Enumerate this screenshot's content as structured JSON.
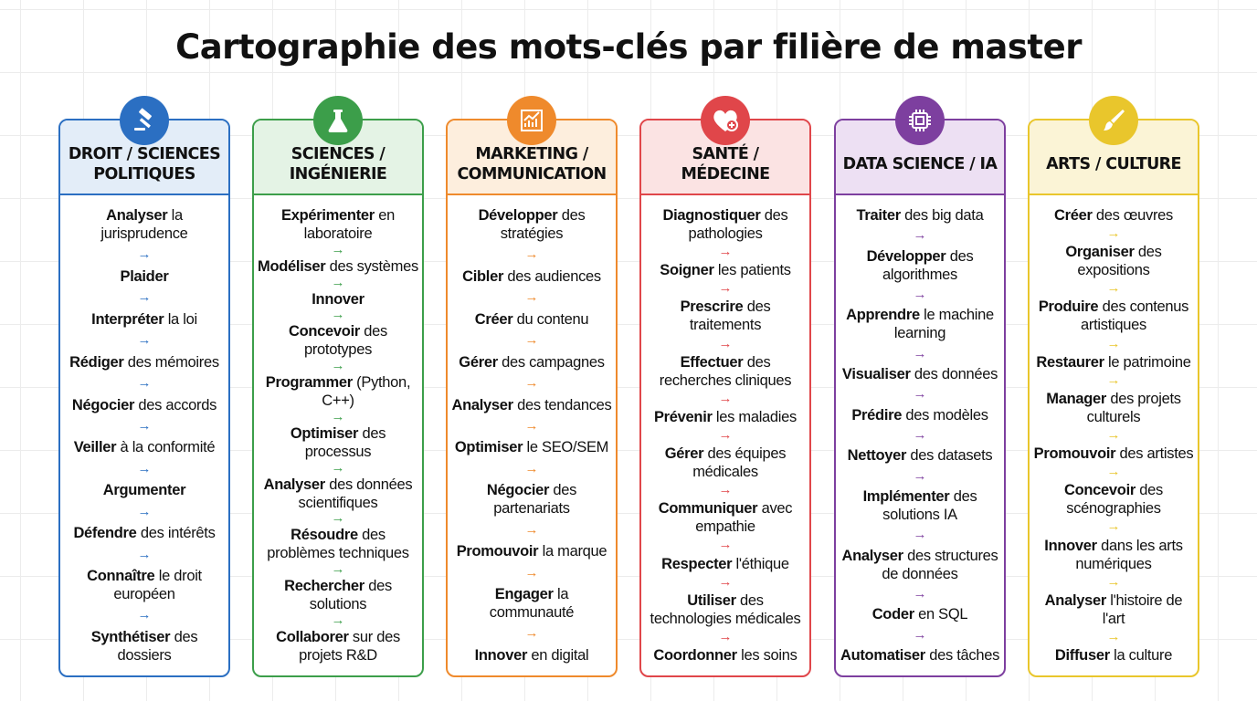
{
  "title": "Cartographie des mots-clés par filière de master",
  "columns": [
    {
      "title": "DROIT / SCIENCES POLITIQUES",
      "icon": "gavel-icon",
      "color": "#2b6fc2",
      "tint": "#e3edf8",
      "items": [
        {
          "b": "Analyser",
          "r": " la jurisprudence"
        },
        {
          "b": "Plaider",
          "r": ""
        },
        {
          "b": "Interpréter",
          "r": " la loi"
        },
        {
          "b": "Rédiger",
          "r": " des mémoires"
        },
        {
          "b": "Négocier",
          "r": " des accords"
        },
        {
          "b": "Veiller",
          "r": " à la conformité"
        },
        {
          "b": "Argumenter",
          "r": ""
        },
        {
          "b": "Défendre",
          "r": " des intérêts"
        },
        {
          "b": "Connaître",
          "r": " le droit européen"
        },
        {
          "b": "Synthétiser",
          "r": " des dossiers"
        }
      ]
    },
    {
      "title": "SCIENCES / INGÉNIERIE",
      "icon": "flask-icon",
      "color": "#3c9e4a",
      "tint": "#e4f3e5",
      "items": [
        {
          "b": "Expérimenter",
          "r": " en laboratoire"
        },
        {
          "b": "Modéliser",
          "r": " des systèmes"
        },
        {
          "b": "Innover",
          "r": ""
        },
        {
          "b": "Concevoir",
          "r": " des prototypes"
        },
        {
          "b": "Programmer",
          "r": " (Python, C++)"
        },
        {
          "b": "Optimiser",
          "r": " des processus"
        },
        {
          "b": "Analyser",
          "r": " des données scientifiques"
        },
        {
          "b": "Résoudre",
          "r": " des problèmes techniques"
        },
        {
          "b": "Rechercher",
          "r": " des solutions"
        },
        {
          "b": "Collaborer",
          "r": " sur des projets R&D"
        }
      ]
    },
    {
      "title": "MARKETING / COMMUNICATION",
      "icon": "chart-icon",
      "color": "#ef8a2c",
      "tint": "#fdeedd",
      "items": [
        {
          "b": "Développer",
          "r": " des stratégies"
        },
        {
          "b": "Cibler",
          "r": " des audiences"
        },
        {
          "b": "Créer",
          "r": " du contenu"
        },
        {
          "b": "Gérer",
          "r": " des campagnes"
        },
        {
          "b": "Analyser",
          "r": " des tendances"
        },
        {
          "b": "Optimiser",
          "r": " le SEO/SEM"
        },
        {
          "b": "Négocier",
          "r": " des partenariats"
        },
        {
          "b": "Promouvoir",
          "r": " la marque"
        },
        {
          "b": "Engager",
          "r": " la communauté"
        },
        {
          "b": "Innover",
          "r": " en digital"
        }
      ]
    },
    {
      "title": "SANTÉ / MÉDECINE",
      "icon": "heart-plus-icon",
      "color": "#e0464a",
      "tint": "#fbe3e3",
      "items": [
        {
          "b": "Diagnostiquer",
          "r": " des pathologies"
        },
        {
          "b": "Soigner",
          "r": " les patients"
        },
        {
          "b": "Prescrire",
          "r": " des traitements"
        },
        {
          "b": "Effectuer",
          "r": " des recherches cliniques"
        },
        {
          "b": "Prévenir",
          "r": " les maladies"
        },
        {
          "b": "Gérer",
          "r": " des équipes médicales"
        },
        {
          "b": "Communiquer",
          "r": " avec empathie"
        },
        {
          "b": "Respecter",
          "r": " l'éthique"
        },
        {
          "b": "Utiliser",
          "r": " des technologies médicales"
        },
        {
          "b": "Coordonner",
          "r": " les soins"
        }
      ]
    },
    {
      "title": "DATA SCIENCE / IA",
      "icon": "chip-icon",
      "color": "#7d3f9f",
      "tint": "#ede0f3",
      "items": [
        {
          "b": "Traiter",
          "r": " des big data"
        },
        {
          "b": "Développer",
          "r": " des algorithmes"
        },
        {
          "b": "Apprendre",
          "r": " le machine learning"
        },
        {
          "b": "Visualiser",
          "r": " des données"
        },
        {
          "b": "Prédire",
          "r": " des modèles"
        },
        {
          "b": "Nettoyer",
          "r": " des datasets"
        },
        {
          "b": "Implémenter",
          "r": " des solutions IA"
        },
        {
          "b": "Analyser",
          "r": " des structures de données"
        },
        {
          "b": "Coder",
          "r": " en SQL"
        },
        {
          "b": "Automatiser",
          "r": " des tâches"
        }
      ]
    },
    {
      "title": "ARTS / CULTURE",
      "icon": "paintbrush-icon",
      "color": "#e9c62c",
      "tint": "#fbf4d6",
      "items": [
        {
          "b": "Créer",
          "r": " des œuvres"
        },
        {
          "b": "Organiser",
          "r": " des expositions"
        },
        {
          "b": "Produire",
          "r": " des contenus artistiques"
        },
        {
          "b": "Restaurer",
          "r": " le patrimoine"
        },
        {
          "b": "Manager",
          "r": " des projets culturels"
        },
        {
          "b": "Promouvoir",
          "r": " des artistes"
        },
        {
          "b": "Concevoir",
          "r": " des scénographies"
        },
        {
          "b": "Innover",
          "r": " dans les arts numériques"
        },
        {
          "b": "Analyser",
          "r": " l'histoire de l'art"
        },
        {
          "b": "Diffuser",
          "r": " la culture"
        }
      ]
    }
  ]
}
